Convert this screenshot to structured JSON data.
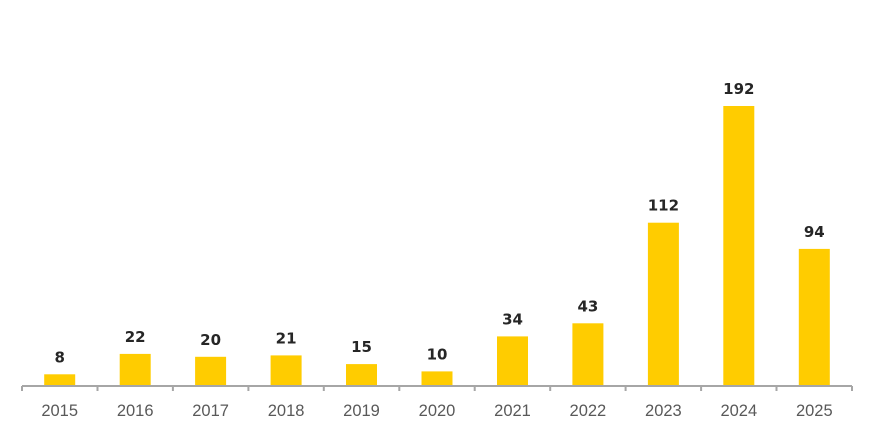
{
  "chart_data": {
    "type": "bar",
    "title": "",
    "xlabel": "",
    "ylabel": "",
    "categories": [
      "2015",
      "2016",
      "2017",
      "2018",
      "2019",
      "2020",
      "2021",
      "2022",
      "2023",
      "2024",
      "2025"
    ],
    "values": [
      8,
      22,
      20,
      21,
      15,
      10,
      34,
      43,
      112,
      192,
      94
    ],
    "data_labels": [
      "8",
      "22",
      "20",
      "21",
      "15",
      "10",
      "34",
      "43",
      "112",
      "192",
      "94"
    ],
    "ylim": [
      0,
      192
    ],
    "grid": false,
    "legend": "none",
    "colors": {
      "bar": "#FFCC00",
      "axis": "#A6A6A6",
      "data_label": "#262626",
      "tick_label": "#595959"
    }
  }
}
